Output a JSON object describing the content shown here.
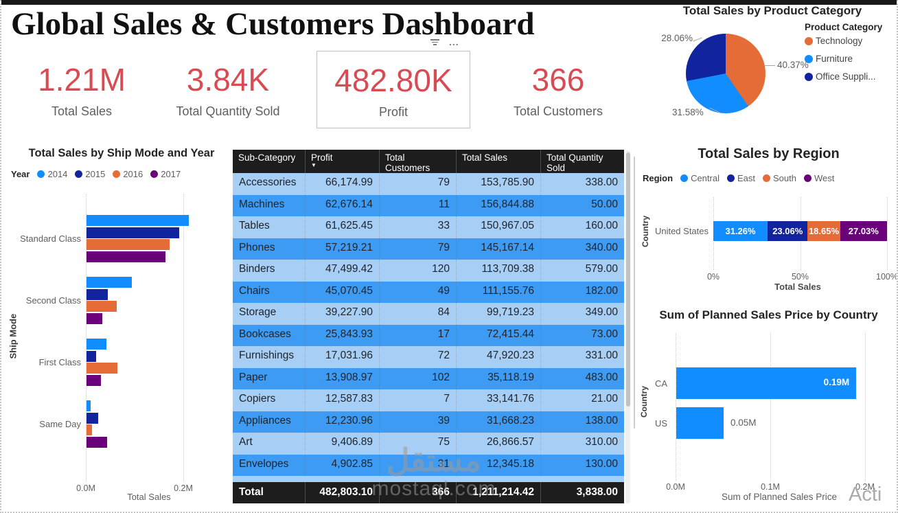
{
  "header": {
    "title": "Global Sales & Customers Dashboard",
    "more_options_icon": "..."
  },
  "kpis": [
    {
      "value": "1.21M",
      "label": "Total Sales",
      "selected": false
    },
    {
      "value": "3.84K",
      "label": "Total Quantity Sold",
      "selected": false
    },
    {
      "value": "482.80K",
      "label": "Profit",
      "selected": true
    },
    {
      "value": "366",
      "label": "Total Customers",
      "selected": false
    }
  ],
  "kpi_color": "#d94b52",
  "chart_data": [
    {
      "type": "pie",
      "title": "Total Sales by Product Category",
      "legend_title": "Product Category",
      "legend_position": "right",
      "slices": [
        {
          "label": "Technology",
          "legend_label": "Technology",
          "pct": 40.37,
          "pct_label": "40.37%",
          "color": "#e66c37"
        },
        {
          "label": "Furniture",
          "legend_label": "Furniture",
          "pct": 31.58,
          "pct_label": "31.58%",
          "color": "#118dff"
        },
        {
          "label": "Office Supplies",
          "legend_label": "Office Suppli...",
          "pct": 28.06,
          "pct_label": "28.06%",
          "color": "#12239e"
        }
      ]
    },
    {
      "type": "bar",
      "orientation": "horizontal",
      "title": "Total Sales by Ship Mode and Year",
      "legend_title": "Year",
      "categories": [
        "Standard Class",
        "Second Class",
        "First Class",
        "Same Day"
      ],
      "series": [
        {
          "name": "2014",
          "color": "#118dff",
          "values": [
            0.21,
            0.093,
            0.041,
            0.008
          ]
        },
        {
          "name": "2015",
          "color": "#12239e",
          "values": [
            0.19,
            0.043,
            0.02,
            0.024
          ]
        },
        {
          "name": "2016",
          "color": "#e66c37",
          "values": [
            0.17,
            0.062,
            0.064,
            0.011
          ]
        },
        {
          "name": "2017",
          "color": "#6b007b",
          "values": [
            0.162,
            0.032,
            0.03,
            0.042
          ]
        }
      ],
      "xlabel": "Total Sales",
      "ylabel": "Ship Mode",
      "xlim": [
        0,
        0.27
      ],
      "xticks": [
        {
          "label": "0.0M",
          "value": 0
        },
        {
          "label": "0.2M",
          "value": 0.2
        }
      ],
      "unit": "M",
      "grid": true
    },
    {
      "type": "bar-stacked-100",
      "title": "Total Sales by Region",
      "legend_title": "Region",
      "categories": [
        "United States"
      ],
      "series": [
        {
          "name": "Central",
          "pct": 31.26,
          "pct_label": "31.26%",
          "color": "#118dff"
        },
        {
          "name": "East",
          "pct": 23.06,
          "pct_label": "23.06%",
          "color": "#12239e"
        },
        {
          "name": "South",
          "pct": 18.65,
          "pct_label": "18.65%",
          "color": "#e66c37"
        },
        {
          "name": "West",
          "pct": 27.03,
          "pct_label": "27.03%",
          "color": "#6b007b"
        }
      ],
      "xticks": [
        {
          "label": "0%",
          "value": 0
        },
        {
          "label": "50%",
          "value": 50
        },
        {
          "label": "100%",
          "value": 100
        }
      ],
      "xlabel": "Total Sales",
      "ylabel": "Country",
      "grid": true
    },
    {
      "type": "bar",
      "orientation": "horizontal",
      "title": "Sum of Planned Sales Price by Country",
      "categories": [
        "CA",
        "US"
      ],
      "values": [
        0.19,
        0.05
      ],
      "data_labels": [
        "0.19M",
        "0.05M"
      ],
      "bar_color": "#118dff",
      "xticks": [
        {
          "label": "0.0M",
          "value": 0
        },
        {
          "label": "0.1M",
          "value": 0.1
        },
        {
          "label": "0.2M",
          "value": 0.2
        }
      ],
      "xlabel": "Sum of Planned Sales Price",
      "ylabel": "Country",
      "xlim": [
        0,
        0.224
      ],
      "unit": "M",
      "grid": true
    }
  ],
  "table": {
    "columns": [
      "Sub-Category",
      "Profit",
      "Total Customers",
      "Total Sales",
      "Total Quantity Sold"
    ],
    "sort_column": "Profit",
    "sort_direction": "desc",
    "sort_icon": "▼",
    "rows": [
      [
        "Accessories",
        "66,174.99",
        "79",
        "153,785.90",
        "338.00"
      ],
      [
        "Machines",
        "62,676.14",
        "11",
        "156,844.88",
        "50.00"
      ],
      [
        "Tables",
        "61,625.45",
        "33",
        "150,967.05",
        "160.00"
      ],
      [
        "Phones",
        "57,219.21",
        "79",
        "145,167.14",
        "340.00"
      ],
      [
        "Binders",
        "47,499.42",
        "120",
        "113,709.38",
        "579.00"
      ],
      [
        "Chairs",
        "45,070.45",
        "49",
        "111,155.76",
        "182.00"
      ],
      [
        "Storage",
        "39,227.90",
        "84",
        "99,719.23",
        "349.00"
      ],
      [
        "Bookcases",
        "25,843.93",
        "17",
        "72,415.44",
        "73.00"
      ],
      [
        "Furnishings",
        "17,031.96",
        "72",
        "47,920.23",
        "331.00"
      ],
      [
        "Paper",
        "13,908.97",
        "102",
        "35,118.19",
        "483.00"
      ],
      [
        "Copiers",
        "12,587.83",
        "7",
        "33,141.76",
        "21.00"
      ],
      [
        "Appliances",
        "12,230.96",
        "39",
        "31,668.23",
        "138.00"
      ],
      [
        "Art",
        "9,406.89",
        "75",
        "26,866.57",
        "310.00"
      ],
      [
        "Envelopes",
        "4,902.85",
        "31",
        "12,345.18",
        "130.00"
      ]
    ],
    "total": [
      "Total",
      "482,803.10",
      "366",
      "1,211,214.42",
      "3,838.00"
    ]
  },
  "watermark": {
    "arabic": "مستقل",
    "latin": "mostaql.com"
  },
  "activate_text": "Acti"
}
